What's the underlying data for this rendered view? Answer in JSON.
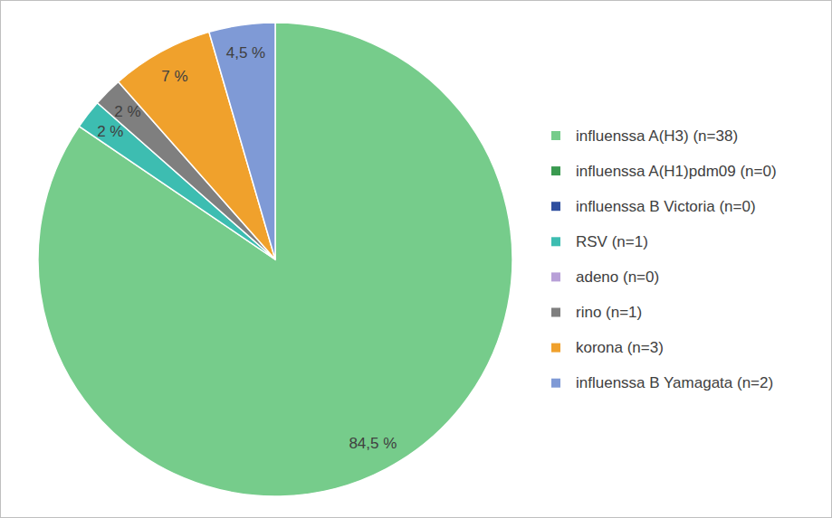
{
  "chart_data": {
    "type": "pie",
    "categories": [
      "influenssa A(H3) (n=38)",
      "influenssa A(H1)pdm09 (n=0)",
      "influenssa B Victoria (n=0)",
      "RSV (n=1)",
      "adeno (n=0)",
      "rino (n=1)",
      "korona (n=3)",
      "influenssa B Yamagata (n=2)"
    ],
    "values": [
      84.5,
      0,
      0,
      2,
      0,
      2,
      7,
      4.5
    ],
    "value_labels": [
      "84,5 %",
      null,
      null,
      "2 %",
      null,
      "2 %",
      "7 %",
      "4,5 %"
    ],
    "colors": [
      "#76cc8b",
      "#3a9a50",
      "#2f4f9f",
      "#3dbdb1",
      "#b8a0d8",
      "#7f7f7f",
      "#f0a12c",
      "#7f9ad6"
    ],
    "data_labels": true,
    "legend": "right"
  }
}
